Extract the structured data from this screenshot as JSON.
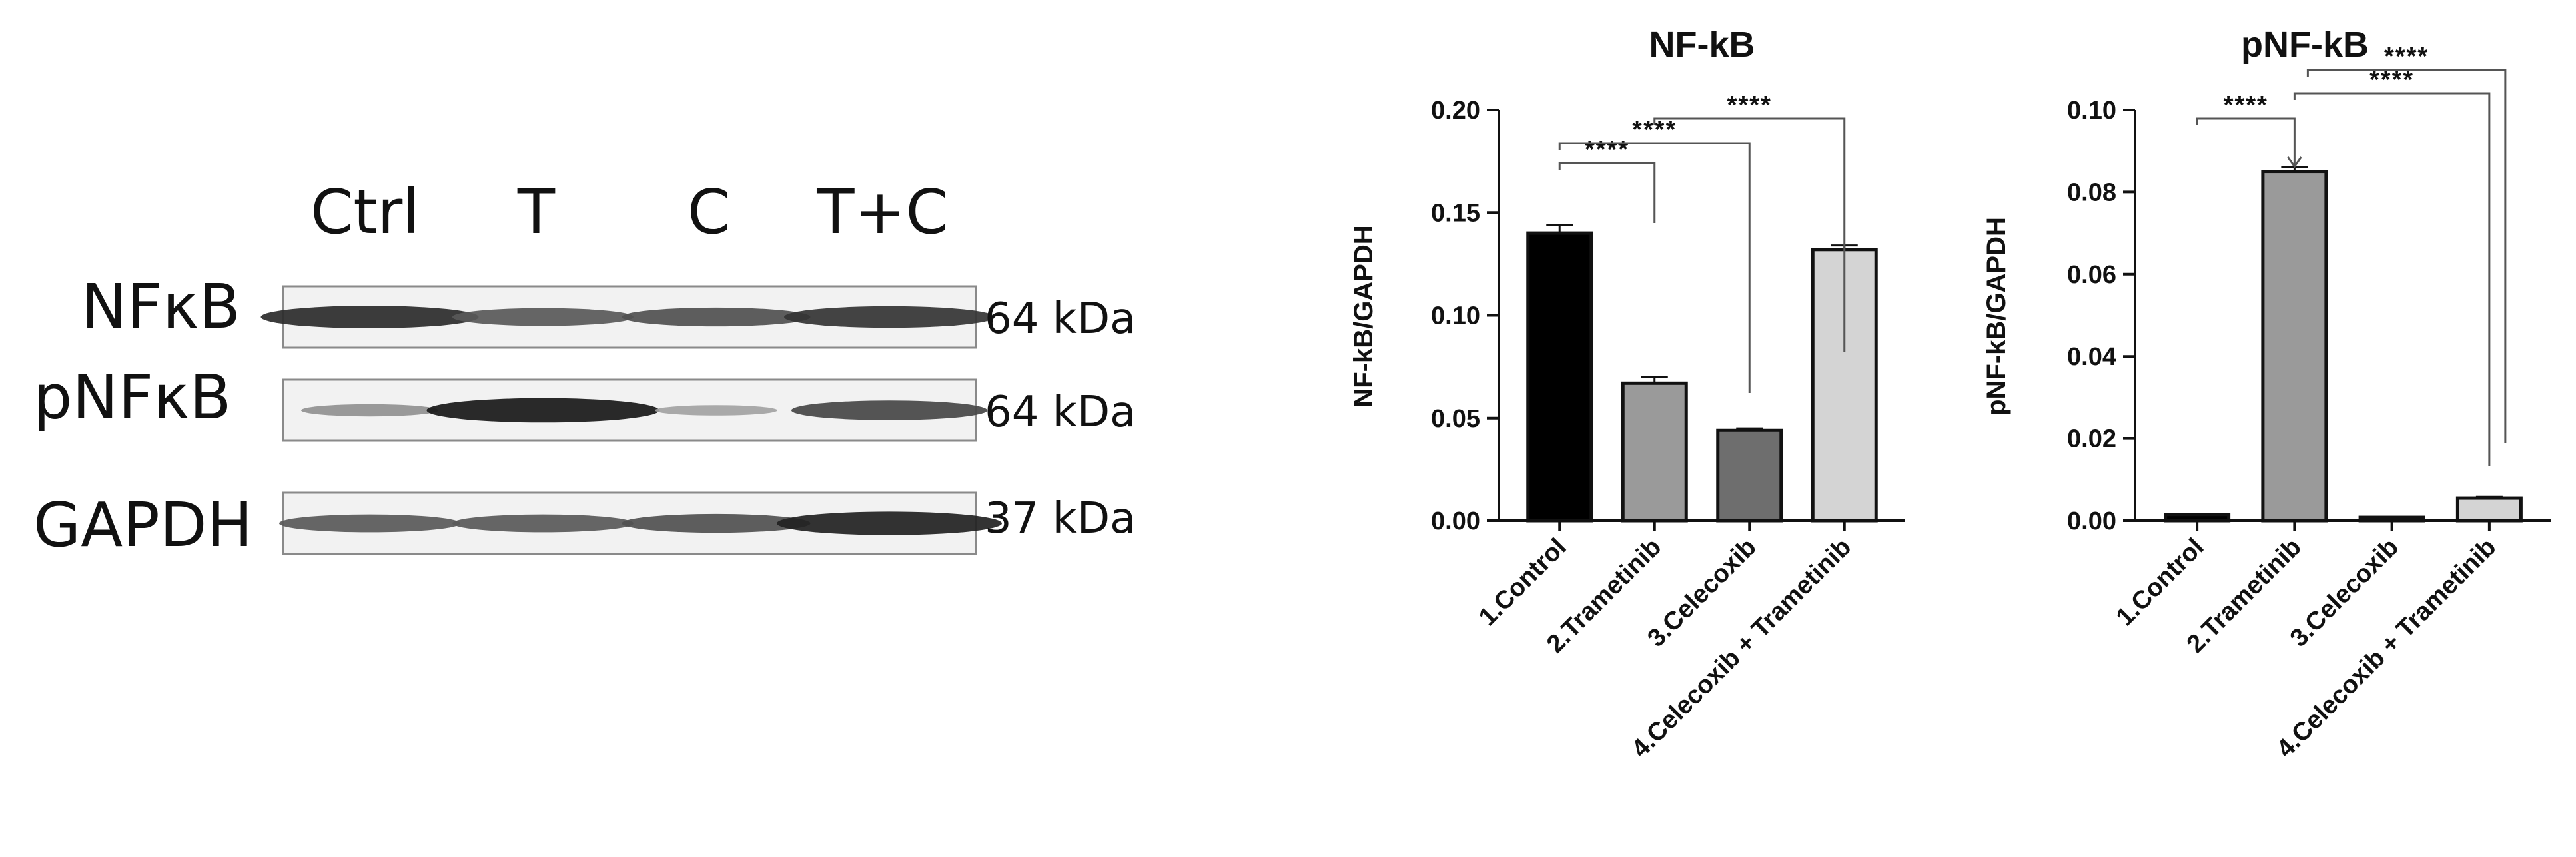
{
  "blot": {
    "lanes": [
      "Ctrl",
      "T",
      "C",
      "T+C"
    ],
    "rows": [
      {
        "protein": "NFκB",
        "kda": "64 kDa",
        "intensities": [
          0.85,
          0.6,
          0.65,
          0.8
        ]
      },
      {
        "protein": "pNFκB",
        "kda": "64 kDa",
        "intensities": [
          0.3,
          0.95,
          0.2,
          0.7
        ]
      },
      {
        "protein": "GAPDH",
        "kda": "37 kDa",
        "intensities": [
          0.6,
          0.6,
          0.65,
          0.9
        ]
      }
    ]
  },
  "chart_data": [
    {
      "type": "bar",
      "title": "NF-kB",
      "ylabel": "NF-kB/GAPDH",
      "xlabel": "",
      "categories": [
        "1.Control",
        "2.Trametinib",
        "3.Celecoxib",
        "4.Celecoxib + Trametinib"
      ],
      "values": [
        0.14,
        0.067,
        0.044,
        0.132
      ],
      "errors": [
        0.004,
        0.003,
        0.001,
        0.002
      ],
      "colors": [
        "#000000",
        "#9a9a9a",
        "#6e6e6e",
        "#d4d4d4"
      ],
      "ylim": [
        0,
        0.2
      ],
      "yticks": [
        "0.00",
        "0.05",
        "0.10",
        "0.15",
        "0.20"
      ],
      "significance": [
        {
          "from": 0,
          "to": 1,
          "label": "****"
        },
        {
          "from": 0,
          "to": 2,
          "label": "****"
        },
        {
          "from": 1,
          "to": 3,
          "label": "****"
        }
      ]
    },
    {
      "type": "bar",
      "title": "pNF-kB",
      "ylabel": "pNF-kB/GAPDH",
      "xlabel": "",
      "categories": [
        "1.Control",
        "2.Trametinib",
        "3.Celecoxib",
        "4.Celecoxib + Trametinib"
      ],
      "values": [
        0.0015,
        0.085,
        0.0008,
        0.0055
      ],
      "errors": [
        0.0002,
        0.001,
        0.0001,
        0.0003
      ],
      "colors": [
        "#000000",
        "#9a9a9a",
        "#6e6e6e",
        "#d4d4d4"
      ],
      "ylim": [
        0,
        0.1
      ],
      "yticks": [
        "0.00",
        "0.02",
        "0.04",
        "0.06",
        "0.08",
        "0.10"
      ],
      "significance": [
        {
          "from": 0,
          "to": 1,
          "label": "****"
        },
        {
          "from": 1,
          "to": 3,
          "label": "****"
        },
        {
          "from": 1,
          "to": 3,
          "label": "****",
          "outer": true
        }
      ]
    }
  ]
}
